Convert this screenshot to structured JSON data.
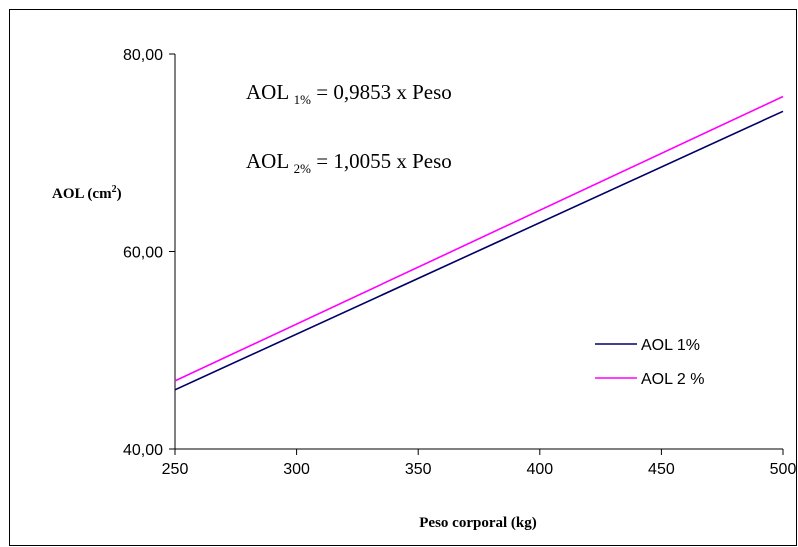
{
  "chart_data": {
    "type": "line",
    "xlabel": "Peso corporal (kg)",
    "ylabel_main": "AOL (cm",
    "ylabel_sup": "2",
    "ylabel_end": ")",
    "xlim": [
      250,
      500
    ],
    "ylim": [
      40,
      80
    ],
    "x_ticks": [
      250,
      300,
      350,
      400,
      450,
      500
    ],
    "x_tick_labels": [
      "250",
      "300",
      "350",
      "400",
      "450",
      "500"
    ],
    "y_ticks": [
      40,
      60,
      80
    ],
    "y_tick_labels": [
      "40,00",
      "60,00",
      "80,00"
    ],
    "grid": false,
    "legend_position": "right",
    "series": [
      {
        "name": "AOL 1%",
        "color": "#000066",
        "x": [
          250,
          500
        ],
        "y": [
          46.0,
          74.2
        ]
      },
      {
        "name": "AOL 2 %",
        "color": "#ff00ff",
        "x": [
          250,
          500
        ],
        "y": [
          46.9,
          75.7
        ]
      }
    ],
    "annotations": [
      {
        "main": "AOL ",
        "sub": "1%",
        "rest": " = 0,9853  x  Peso"
      },
      {
        "main": "AOL ",
        "sub": "2%",
        "rest": " = 1,0055  x  Peso"
      }
    ]
  }
}
